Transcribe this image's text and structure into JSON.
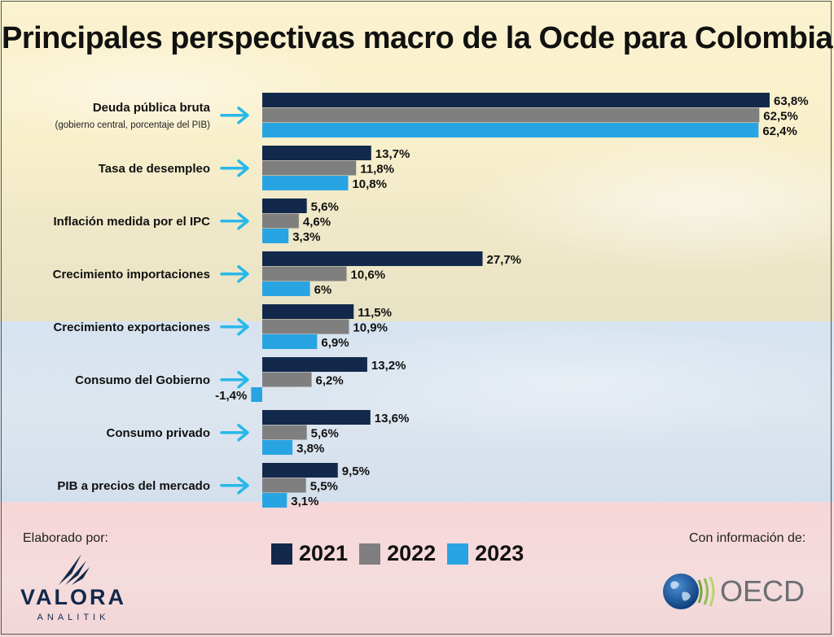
{
  "header": {
    "title": "Principales perspectivas macro de la Ocde para Colombia"
  },
  "colors": {
    "s2021": "#13294b",
    "s2022": "#7f7f7f",
    "s2023": "#29a4e3",
    "arrow": "#29b8e8"
  },
  "chart_data": {
    "type": "bar",
    "orientation": "horizontal",
    "title": "Principales perspectivas macro de la Ocde para Colombia",
    "categories": [
      {
        "label": "Deuda pública bruta",
        "sublabel": "(gobierno central, porcentaje del PIB)"
      },
      {
        "label": "Tasa de desempleo"
      },
      {
        "label": "Inflación medida por el IPC"
      },
      {
        "label": "Crecimiento importaciones"
      },
      {
        "label": "Crecimiento exportaciones"
      },
      {
        "label": "Consumo del Gobierno"
      },
      {
        "label": "Consumo privado"
      },
      {
        "label": "PIB a precios del mercado"
      }
    ],
    "series": [
      {
        "name": "2021",
        "values": [
          63.8,
          13.7,
          5.6,
          27.7,
          11.5,
          13.2,
          13.6,
          9.5
        ],
        "labels": [
          "63,8%",
          "13,7%",
          "5,6%",
          "27,7%",
          "11,5%",
          "13,2%",
          "13,6%",
          "9,5%"
        ]
      },
      {
        "name": "2022",
        "values": [
          62.5,
          11.8,
          4.6,
          10.6,
          10.9,
          6.2,
          5.6,
          5.5
        ],
        "labels": [
          "62,5%",
          "11,8%",
          "4,6%",
          "10,6%",
          "10,9%",
          "6,2%",
          "5,6%",
          "5,5%"
        ]
      },
      {
        "name": "2023",
        "values": [
          62.4,
          10.8,
          3.3,
          6.0,
          6.9,
          -1.4,
          3.8,
          3.1
        ],
        "labels": [
          "62,4%",
          "10,8%",
          "3,3%",
          "6%",
          "6,9%",
          "-1,4%",
          "3,8%",
          "3,1%"
        ]
      }
    ],
    "xlim": [
      0,
      63.8
    ],
    "grid": false,
    "legend": "bottom-center"
  },
  "legend": {
    "items": [
      "2021",
      "2022",
      "2023"
    ]
  },
  "footer": {
    "made_by": "Elaborado por:",
    "source": "Con información de:",
    "valora_name": "VALORA",
    "valora_sub": "ANALITIK",
    "oecd_name": "OECD"
  },
  "icons": {
    "arrow": "right-arrow-icon"
  }
}
